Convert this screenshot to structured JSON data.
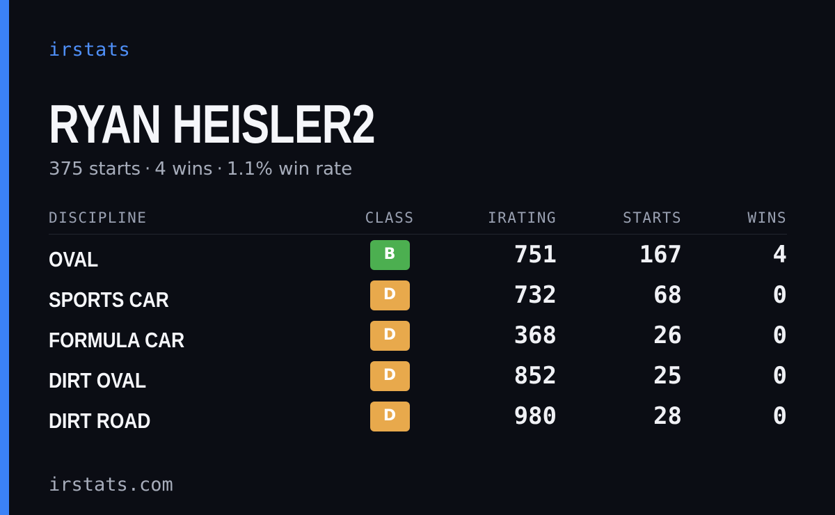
{
  "brand": "irstats",
  "driver": {
    "name": "RYAN HEISLER2",
    "starts": "375 starts",
    "wins": "4 wins",
    "win_rate": "1.1% win rate",
    "separator": "·"
  },
  "table": {
    "headers": {
      "discipline": "DISCIPLINE",
      "class": "CLASS",
      "irating": "IRATING",
      "starts": "STARTS",
      "wins": "WINS"
    },
    "rows": [
      {
        "discipline": "OVAL",
        "class": "B",
        "class_color": "#4caf50",
        "irating": "751",
        "starts": "167",
        "wins": "4"
      },
      {
        "discipline": "SPORTS CAR",
        "class": "D",
        "class_color": "#e8a94c",
        "irating": "732",
        "starts": "68",
        "wins": "0"
      },
      {
        "discipline": "FORMULA CAR",
        "class": "D",
        "class_color": "#e8a94c",
        "irating": "368",
        "starts": "26",
        "wins": "0"
      },
      {
        "discipline": "DIRT OVAL",
        "class": "D",
        "class_color": "#e8a94c",
        "irating": "852",
        "starts": "25",
        "wins": "0"
      },
      {
        "discipline": "DIRT ROAD",
        "class": "D",
        "class_color": "#e8a94c",
        "irating": "980",
        "starts": "28",
        "wins": "0"
      }
    ]
  },
  "footer": "irstats.com",
  "colors": {
    "background": "#0b0d14",
    "accent": "#3b82f6",
    "brand": "#4f8ff7"
  }
}
